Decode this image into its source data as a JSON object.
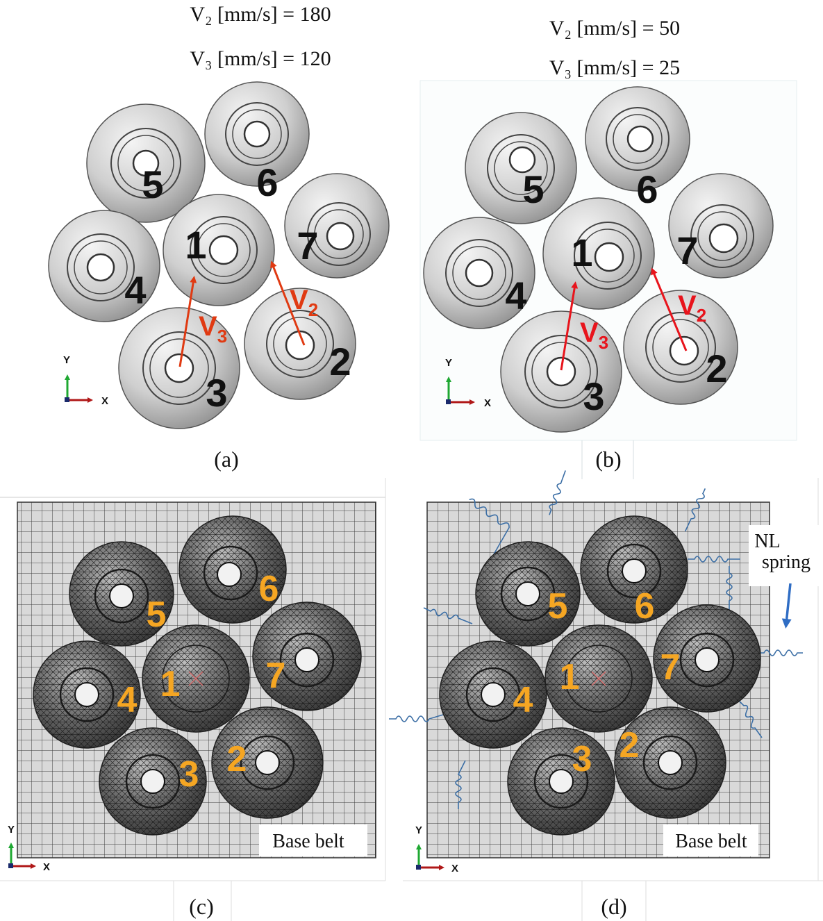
{
  "panels": {
    "a": {
      "label": "(a)",
      "eq_v2": "V₂ [mm/s] = 180",
      "eq_v3": "V₃ [mm/s] = 120",
      "arrow_v2": {
        "main": "V",
        "sub": "2"
      },
      "arrow_v3": {
        "main": "V",
        "sub": "3"
      },
      "arrow_color": "#e03a12"
    },
    "b": {
      "label": "(b)",
      "eq_v2": "V₂ [mm/s] = 50",
      "eq_v3": "V₃ [mm/s] = 25",
      "arrow_v2": {
        "main": "V",
        "sub": "2"
      },
      "arrow_v3": {
        "main": "V",
        "sub": "3"
      },
      "arrow_color": "#e8141c"
    },
    "c": {
      "label": "(c)",
      "base_label": "Base belt"
    },
    "d": {
      "label": "(d)",
      "base_label": "Base belt",
      "spring_label_line1": "NL",
      "spring_label_line2": "spring"
    }
  },
  "object_numbers": [
    "1",
    "2",
    "3",
    "4",
    "5",
    "6",
    "7"
  ],
  "axis": {
    "y": "Y",
    "x": "X"
  },
  "colors": {
    "number_dark": "#111111",
    "number_orange": "#f5a623",
    "spring_blue": "#3b6ea5",
    "grid_line": "#3a3a3a",
    "grid_fill": "#d8d8d8",
    "axis_green": "#1fa832",
    "axis_red": "#b01818",
    "axis_navy": "#1a2a6c"
  }
}
